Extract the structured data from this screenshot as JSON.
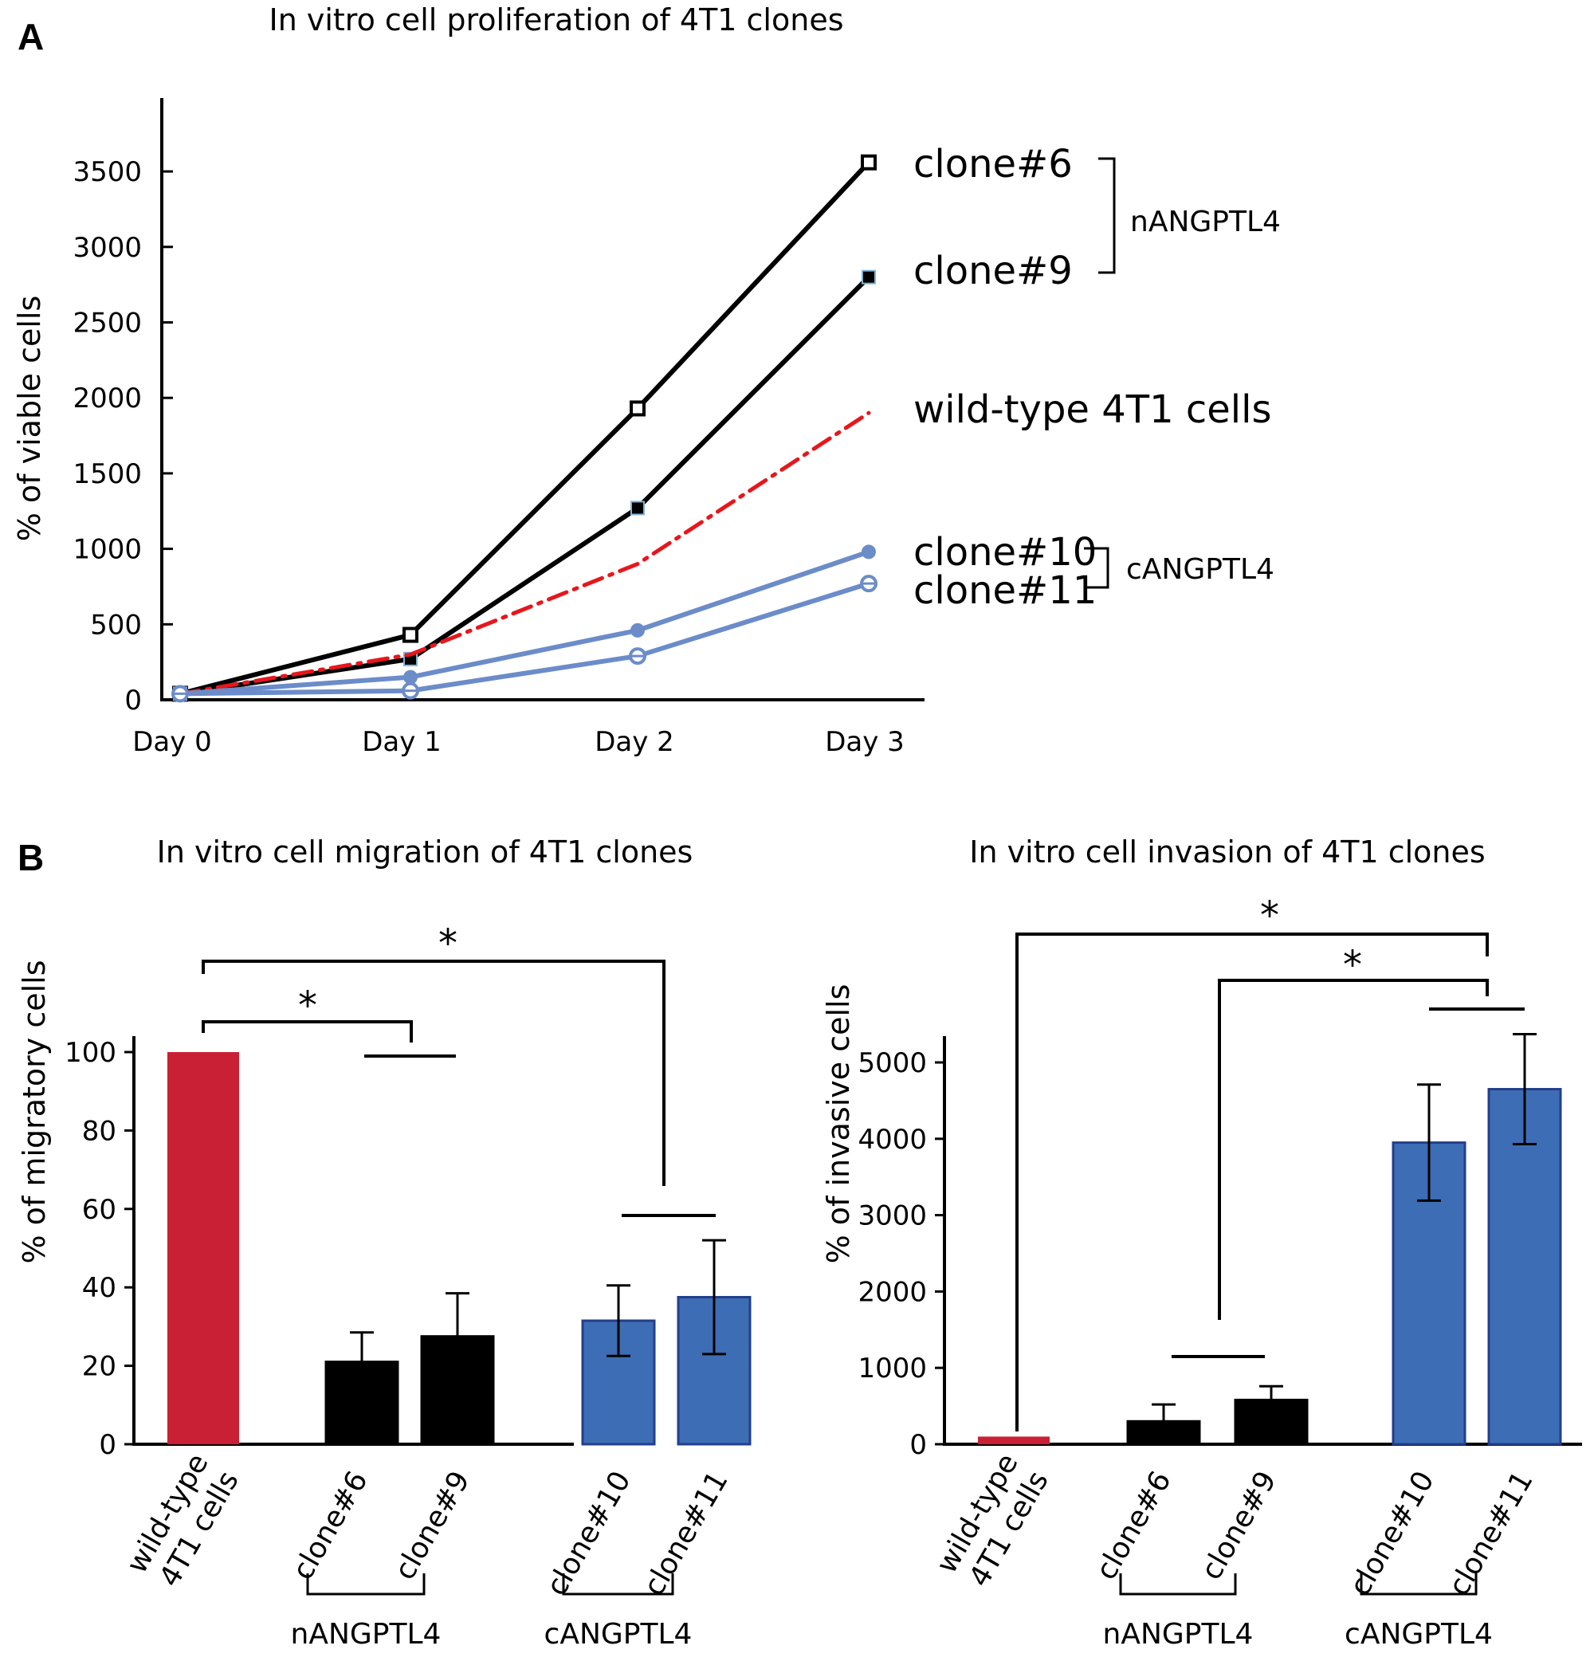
{
  "panels": {
    "a": "A",
    "b": "B"
  },
  "chart_data": [
    {
      "type": "line",
      "title": "In vitro cell proliferation of 4T1 clones",
      "xlabel": "",
      "ylabel": "% of viable cells",
      "categories": [
        "Day 0",
        "Day 1",
        "Day 2",
        "Day 3"
      ],
      "ylim": [
        0,
        3500
      ],
      "yticks": [
        0,
        500,
        1000,
        1500,
        2000,
        2500,
        3000,
        3500
      ],
      "series": [
        {
          "name": "clone#6",
          "values": [
            40,
            430,
            1930,
            3560
          ],
          "color": "#000000",
          "marker": "open-square",
          "dash": false
        },
        {
          "name": "clone#9",
          "values": [
            40,
            270,
            1270,
            2800
          ],
          "color": "#000000",
          "marker": "filled-square",
          "dash": false
        },
        {
          "name": "wild-type 4T1 cells",
          "values": [
            40,
            300,
            900,
            1900
          ],
          "color": "#e8161b",
          "marker": "none",
          "dash": true
        },
        {
          "name": "clone#10",
          "values": [
            40,
            150,
            460,
            980
          ],
          "color": "#6b8cc9",
          "marker": "filled-circle",
          "dash": false
        },
        {
          "name": "clone#11",
          "values": [
            40,
            60,
            290,
            770
          ],
          "color": "#6b8cc9",
          "marker": "open-circle",
          "dash": false
        }
      ],
      "groups": [
        {
          "label": "nANGPTL4",
          "members": [
            "clone#6",
            "clone#9"
          ]
        },
        {
          "label": "cANGPTL4",
          "members": [
            "clone#10",
            "clone#11"
          ]
        }
      ]
    },
    {
      "type": "bar",
      "title": "In vitro cell migration of 4T1 clones",
      "xlabel": "",
      "ylabel": "% of migratory cells",
      "categories": [
        "wild-type\n4T1 cells",
        "clone#6",
        "clone#9",
        "clone#10",
        "clone#11"
      ],
      "values": [
        100,
        21,
        27.5,
        31.5,
        37.5
      ],
      "errors": [
        0,
        7.5,
        11,
        9,
        14.5
      ],
      "colors": [
        "#c92035",
        "#000000",
        "#000000",
        "#3d6db5",
        "#3d6db5"
      ],
      "ylim": [
        0,
        100
      ],
      "yticks": [
        0,
        20,
        40,
        60,
        80,
        100
      ],
      "groups": [
        {
          "label": "nANGPTL4",
          "members": [
            "clone#6",
            "clone#9"
          ]
        },
        {
          "label": "cANGPTL4",
          "members": [
            "clone#10",
            "clone#11"
          ]
        }
      ],
      "significance": [
        "*",
        "*"
      ]
    },
    {
      "type": "bar",
      "title": "In vitro cell invasion of 4T1 clones",
      "xlabel": "",
      "ylabel": "% of invasive cells",
      "categories": [
        "wild-type\n4T1 cells",
        "clone#6",
        "clone#9",
        "clone#10",
        "clone#11"
      ],
      "values": [
        100,
        300,
        580,
        3950,
        4650
      ],
      "errors": [
        0,
        220,
        180,
        760,
        720
      ],
      "colors": [
        "#c92035",
        "#000000",
        "#000000",
        "#3d6db5",
        "#3d6db5"
      ],
      "ylim": [
        0,
        5000
      ],
      "yticks": [
        0,
        1000,
        2000,
        3000,
        4000,
        5000
      ],
      "groups": [
        {
          "label": "nANGPTL4",
          "members": [
            "clone#6",
            "clone#9"
          ]
        },
        {
          "label": "cANGPTL4",
          "members": [
            "clone#10",
            "clone#11"
          ]
        }
      ],
      "significance": [
        "*",
        "*"
      ]
    }
  ]
}
